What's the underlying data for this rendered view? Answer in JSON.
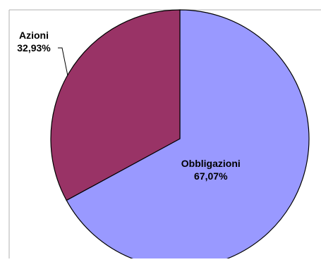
{
  "chart_data": {
    "type": "pie",
    "title": "",
    "slices": [
      {
        "label": "Obbligazioni",
        "percent_label": "67,07%",
        "value": 67.07,
        "color": "#9999ff"
      },
      {
        "label": "Azioni",
        "percent_label": "32,93%",
        "value": 32.93,
        "color": "#993366"
      }
    ],
    "legend": "none",
    "start_angle": "top, clockwise"
  },
  "colors": {
    "slice_stroke": "#000000",
    "frame": "#999999",
    "background": "#ffffff"
  }
}
